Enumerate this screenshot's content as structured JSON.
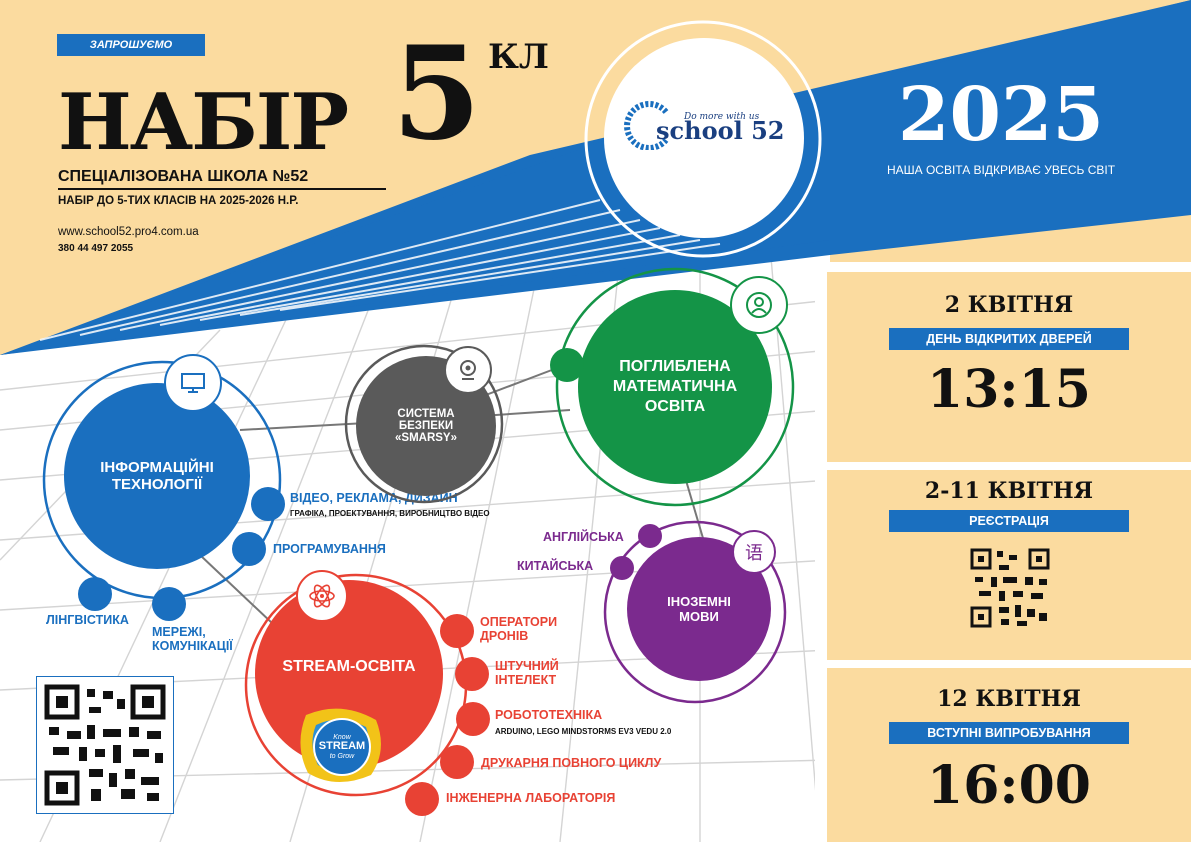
{
  "header": {
    "invite": "ЗАПРОШУЄМО",
    "title": "НАБІР",
    "grade_number": "5",
    "grade_suffix": "КЛ",
    "school_name": "СПЕЦІАЛІЗОВАНА ШКОЛА №52",
    "admission": "НАБІР ДО 5-ТИХ КЛАСІВ НА 2025-2026 Н.Р.",
    "website": "www.school52.pro4.com.ua",
    "phone": "380 44 497 2055"
  },
  "logo": {
    "tagline": "Do more with us",
    "name": "school 52"
  },
  "year_block": {
    "year": "2025",
    "slogan": "НАША ОСВІТА ВІДКРИВАЄ УВЕСЬ СВІТ"
  },
  "events": [
    {
      "date": "2 КВІТНЯ",
      "title": "ДЕНЬ ВІДКРИТИХ ДВЕРЕЙ",
      "time": "13:15"
    },
    {
      "date": "2-11 КВІТНЯ",
      "title": "РЕЄСТРАЦІЯ",
      "time": ""
    },
    {
      "date": "12 КВІТНЯ",
      "title": "ВСТУПНІ ВИПРОБУВАННЯ",
      "time": "16:00"
    }
  ],
  "nodes": {
    "it": {
      "label": "ІНФОРМАЦІЙНІ ТЕХНОЛОГІЇ",
      "icon": "monitor-icon",
      "items": [
        {
          "label": "ВІДЕО, РЕКЛАМА, ДИЗАЙН",
          "sub": "ГРАФІКА, ПРОЕКТУВАННЯ, ВИРОБНИЦТВО ВІДЕО"
        },
        {
          "label": "ПРОГРАМУВАННЯ",
          "sub": ""
        },
        {
          "label": "ЛІНГВІСТИКА",
          "sub": ""
        },
        {
          "label": "МЕРЕЖІ, КОМУНІКАЦІЇ",
          "sub": ""
        }
      ]
    },
    "security": {
      "label": "СИСТЕМА БЕЗПЕКИ «SMARSY»",
      "icon": "webcam-icon"
    },
    "math": {
      "label": "ПОГЛИБЛЕНА МАТЕМАТИЧНА ОСВІТА",
      "icon": "person-icon"
    },
    "languages": {
      "label": "ІНОЗЕМНІ МОВИ",
      "icon_glyph": "语",
      "items": [
        "АНГЛІЙСЬКА",
        "КИТАЙСЬКА"
      ]
    },
    "stream": {
      "label": "STREAM-ОСВІТА",
      "icon": "atom-icon",
      "badge": [
        "Know",
        "STREAM",
        "to Grow"
      ],
      "items": [
        {
          "label": "ОПЕРАТОРИ ДРОНІВ",
          "sub": ""
        },
        {
          "label": "ШТУЧНИЙ ІНТЕЛЕКТ",
          "sub": ""
        },
        {
          "label": "РОБОТОТЕХНІКА",
          "sub": "ARDUINO, LEGO MINDSTORMS EV3 VEDU 2.0"
        },
        {
          "label": "ДРУКАРНЯ ПОВНОГО ЦИКЛУ",
          "sub": ""
        },
        {
          "label": "ІНЖЕНЕРНА ЛАБОРАТОРІЯ",
          "sub": ""
        }
      ]
    }
  },
  "colors": {
    "blue": "#1a6fbf",
    "sand": "#fbdb9f",
    "green": "#149447",
    "gray": "#5a5a5a",
    "purple": "#7b2a8e",
    "red": "#e84234"
  }
}
